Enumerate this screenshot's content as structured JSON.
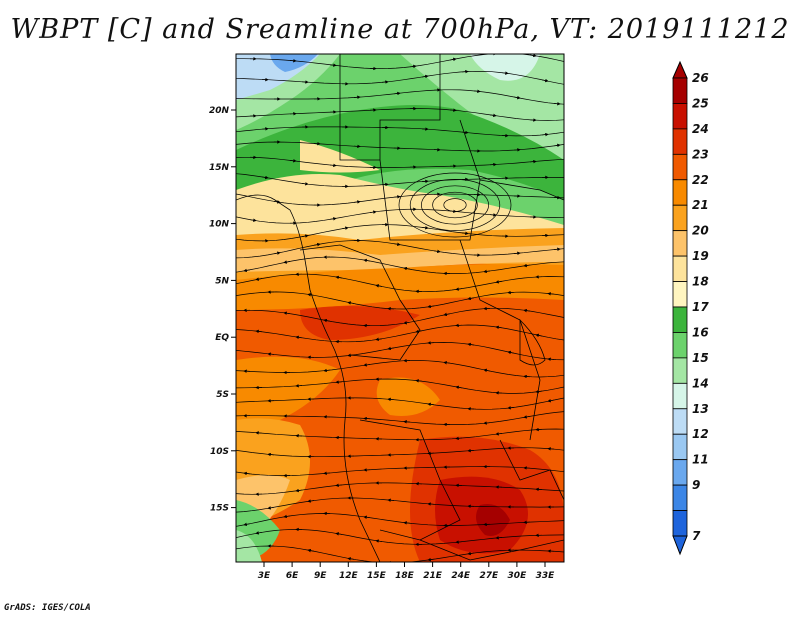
{
  "title": "WBPT [C] and Sreamline at 700hPa, VT: 2019111212",
  "credit": "GrADS: IGES/COLA",
  "map": {
    "lon_labels": [
      "3E",
      "6E",
      "9E",
      "12E",
      "15E",
      "18E",
      "21E",
      "24E",
      "27E",
      "30E",
      "33E"
    ],
    "lat_labels": [
      "20N",
      "15N",
      "10N",
      "5N",
      "EQ",
      "5S",
      "10S",
      "15S"
    ]
  },
  "colorbar": {
    "labels": [
      "26",
      "25",
      "24",
      "23",
      "22",
      "21",
      "20",
      "19",
      "18",
      "17",
      "16",
      "15",
      "14",
      "13",
      "12",
      "11",
      "9",
      "7"
    ],
    "colors": [
      "#a50000",
      "#c81000",
      "#e03200",
      "#f05a00",
      "#f88a00",
      "#faa21e",
      "#fdc36a",
      "#fde39c",
      "#fff5c0",
      "#3cb43c",
      "#6cd26c",
      "#a4e6a4",
      "#d6f5e8",
      "#bddcf5",
      "#9ac8f2",
      "#6aa8ee",
      "#3c86e6",
      "#1e64dc"
    ]
  }
}
